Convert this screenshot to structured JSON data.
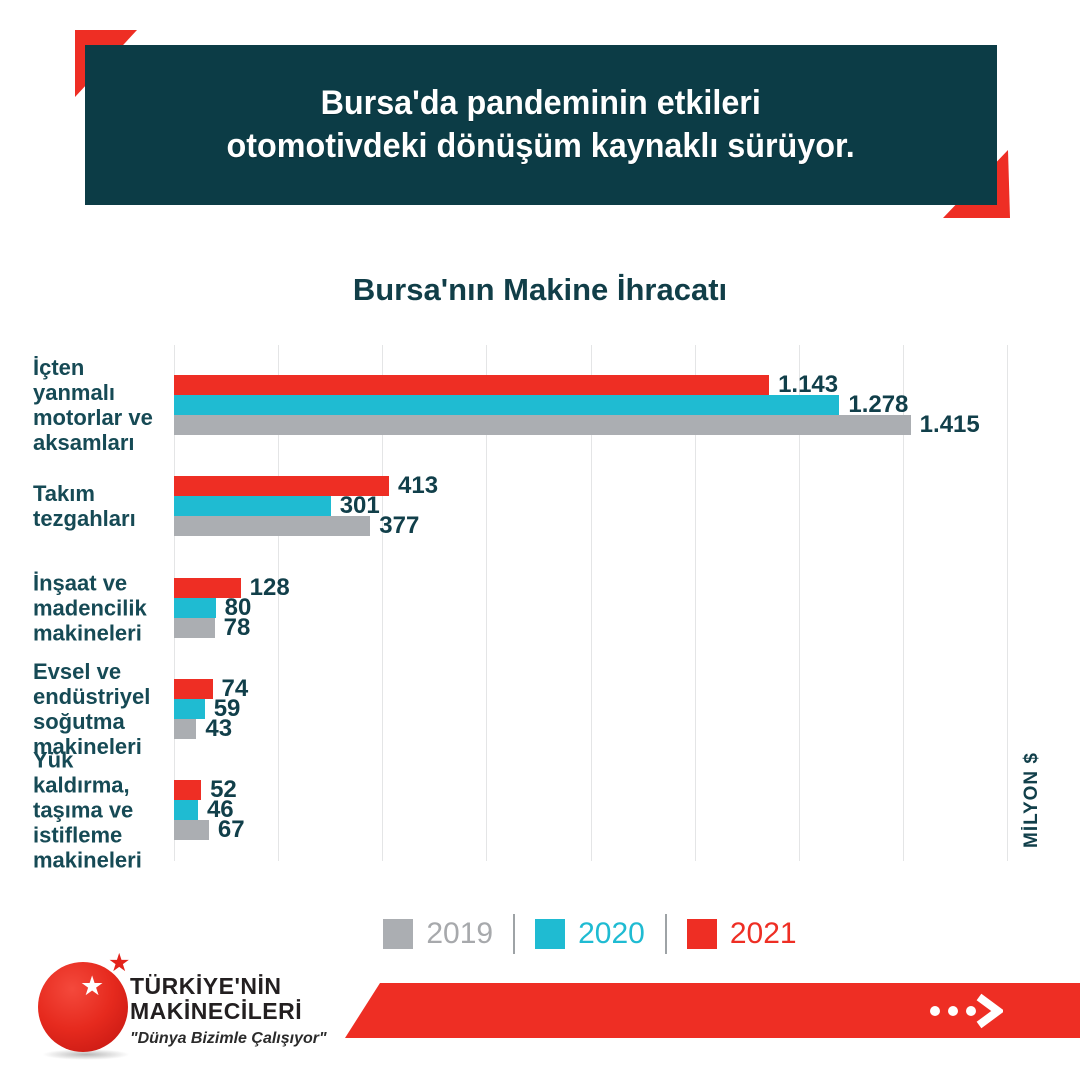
{
  "header": {
    "line1": "Bursa'da pandeminin etkileri",
    "line2": "otomotivdeki dönüşüm kaynaklı sürüyor."
  },
  "chart_data": {
    "type": "bar",
    "orientation": "horizontal",
    "title": "Bursa'nın Makine İhracatı",
    "unit_label": "MİLYON $",
    "x_min": 0,
    "x_max": 1600,
    "x_gridline_step": 200,
    "grid": true,
    "legend_position": "bottom",
    "categories": [
      {
        "name": "İçten yanmalı motorlar ve aksamları",
        "lines": [
          "İçten yanmalı",
          "motorlar ve",
          "aksamları"
        ]
      },
      {
        "name": "Takım tezgahları",
        "lines": [
          "Takım",
          "tezgahları"
        ]
      },
      {
        "name": "İnşaat ve madencilik makineleri",
        "lines": [
          "İnşaat ve",
          "madencilik",
          "makineleri"
        ]
      },
      {
        "name": "Evsel ve endüstriyel soğutma makineleri",
        "lines": [
          "Evsel ve",
          "endüstriyel",
          "soğutma",
          "makineleri"
        ]
      },
      {
        "name": "Yük kaldırma, taşıma ve istifleme makineleri",
        "lines": [
          "Yük kaldırma,",
          "taşıma ve",
          "istifleme",
          "makineleri"
        ]
      }
    ],
    "series": [
      {
        "name": "2019",
        "color": "#ABAEB2",
        "values": [
          1415,
          377,
          78,
          43,
          67
        ],
        "labels": [
          "1.415",
          "377",
          "78",
          "43",
          "67"
        ]
      },
      {
        "name": "2020",
        "color": "#1FBBD2",
        "values": [
          1278,
          301,
          80,
          59,
          46
        ],
        "labels": [
          "1.278",
          "301",
          "80",
          "59",
          "46"
        ]
      },
      {
        "name": "2021",
        "color": "#EE2E24",
        "values": [
          1143,
          413,
          128,
          74,
          52
        ],
        "labels": [
          "1.143",
          "413",
          "128",
          "74",
          "52"
        ]
      }
    ],
    "bar_order_top_to_bottom": [
      "2021",
      "2020",
      "2019"
    ]
  },
  "legend": {
    "items": [
      {
        "label": "2019",
        "swatch_color": "#ABAEB2",
        "text_color": "#A7A9AC"
      },
      {
        "label": "2020",
        "swatch_color": "#1FBBD2",
        "text_color": "#1FBBD2"
      },
      {
        "label": "2021",
        "swatch_color": "#EE2E24",
        "text_color": "#EE2E24"
      }
    ]
  },
  "logo": {
    "name_line1": "TÜRKİYE'NİN",
    "name_line2": "MAKİNECİLERİ",
    "slogan": "\"Dünya Bizimle Çalışıyor\"",
    "star_glyph": "★"
  },
  "colors": {
    "accent_red": "#EE2E24",
    "banner_teal": "#0C3C46",
    "text_teal": "#113F4A",
    "gridline": "#E4E5E6"
  }
}
